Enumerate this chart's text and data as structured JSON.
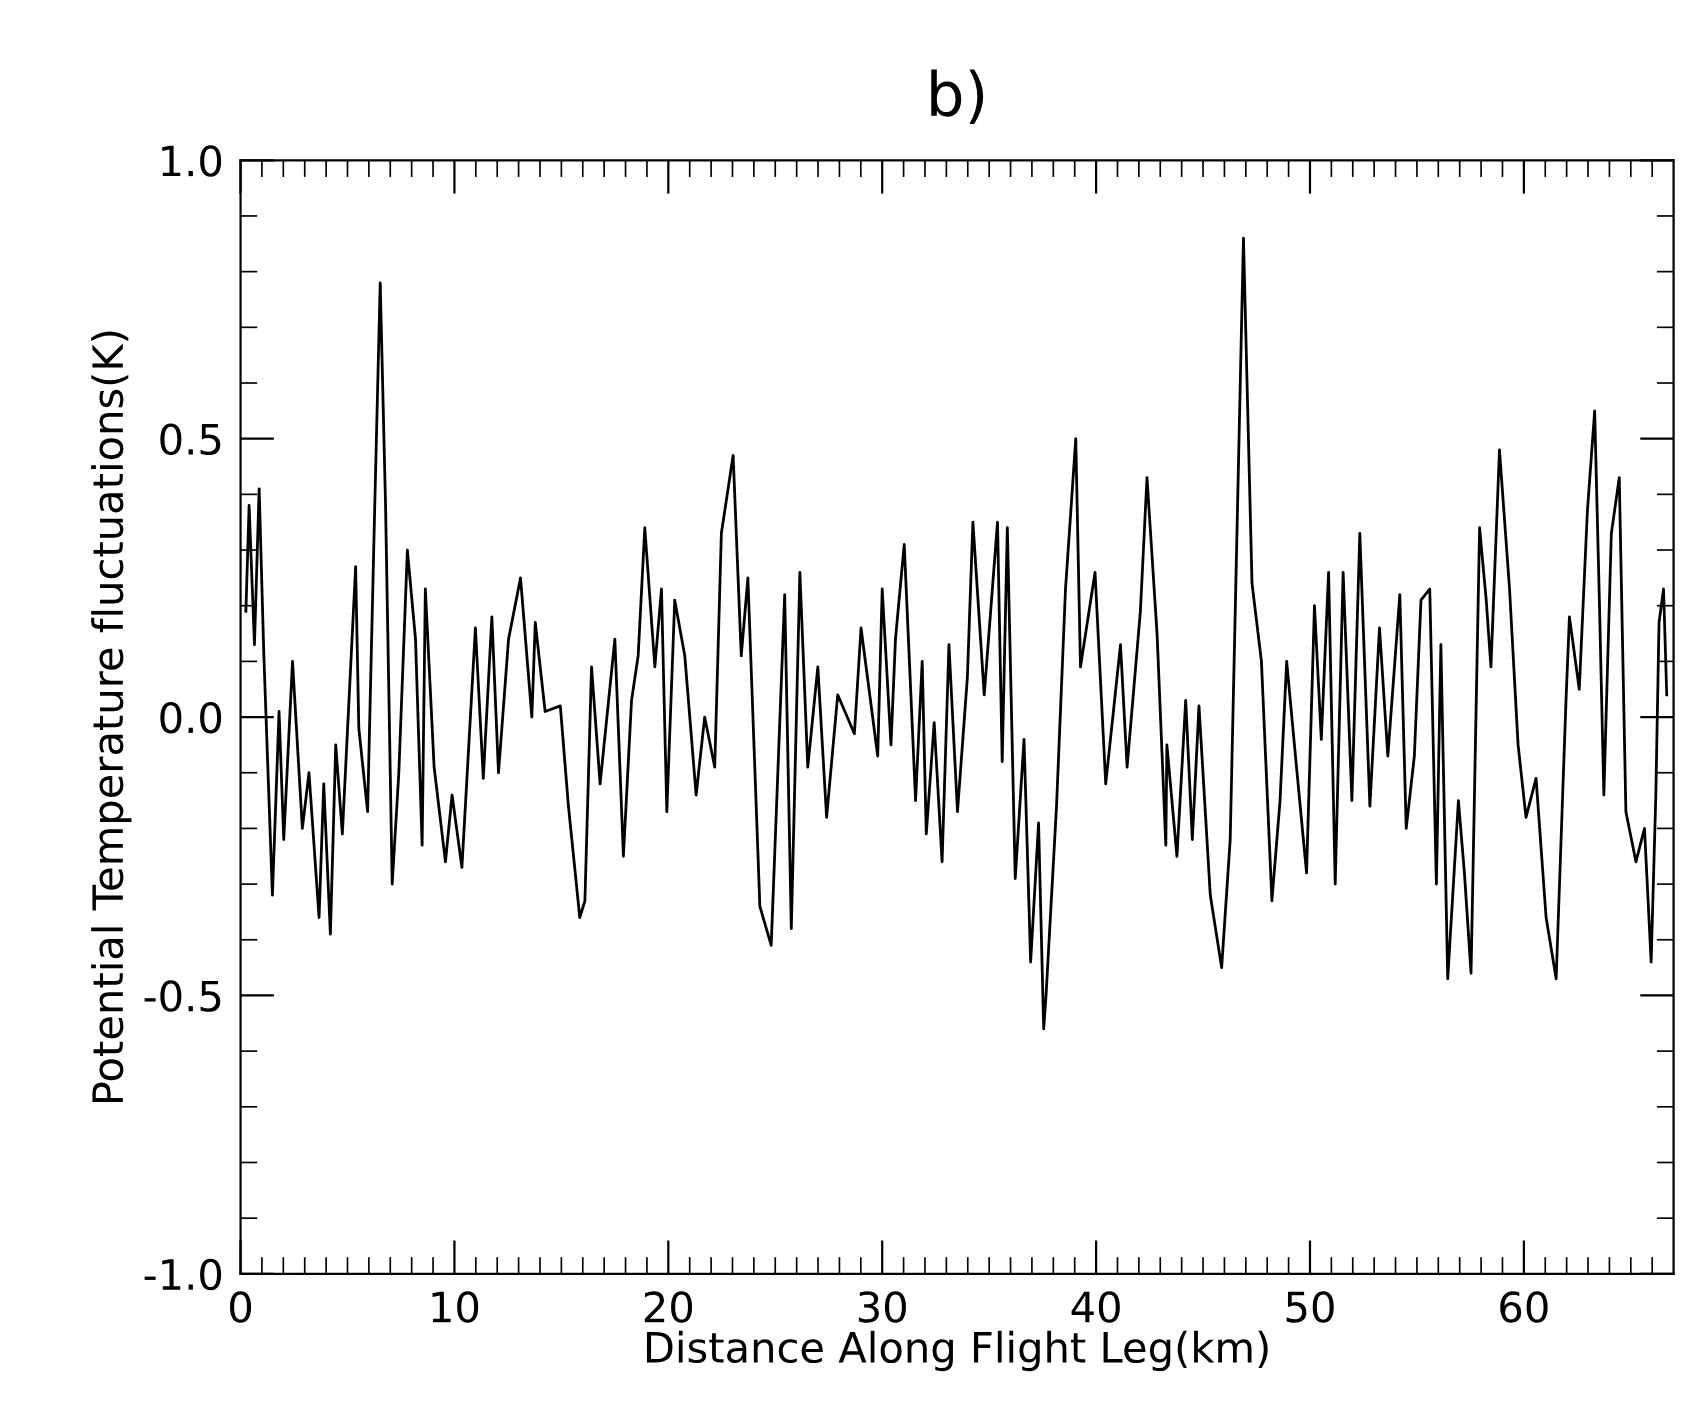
{
  "chart_data": {
    "type": "line",
    "title": "b)",
    "xlabel": "Distance Along Flight Leg(km)",
    "ylabel": "Potential Temperature fluctuations(K)",
    "xlim": [
      0,
      67
    ],
    "ylim": [
      -1.0,
      1.0
    ],
    "xticks": [
      0,
      {
        "value": 1,
        "label": null
      },
      {
        "value": 2,
        "label": null
      },
      {
        "value": 3,
        "label": null
      },
      {
        "value": 4,
        "label": null
      },
      {
        "value": 5,
        "label": null
      },
      {
        "value": 6,
        "label": null
      },
      {
        "value": 7,
        "label": null
      },
      {
        "value": 8,
        "label": null
      },
      {
        "value": 9,
        "label": null
      },
      10,
      {
        "value": 11,
        "label": null
      },
      {
        "value": 12,
        "label": null
      },
      {
        "value": 13,
        "label": null
      },
      {
        "value": 14,
        "label": null
      },
      {
        "value": 15,
        "label": null
      },
      {
        "value": 16,
        "label": null
      },
      {
        "value": 17,
        "label": null
      },
      {
        "value": 18,
        "label": null
      },
      {
        "value": 19,
        "label": null
      },
      20,
      {
        "value": 21,
        "label": null
      },
      {
        "value": 22,
        "label": null
      },
      {
        "value": 23,
        "label": null
      },
      {
        "value": 24,
        "label": null
      },
      {
        "value": 25,
        "label": null
      },
      {
        "value": 26,
        "label": null
      },
      {
        "value": 27,
        "label": null
      },
      {
        "value": 28,
        "label": null
      },
      {
        "value": 29,
        "label": null
      },
      30,
      {
        "value": 31,
        "label": null
      },
      {
        "value": 32,
        "label": null
      },
      {
        "value": 33,
        "label": null
      },
      {
        "value": 34,
        "label": null
      },
      {
        "value": 35,
        "label": null
      },
      {
        "value": 36,
        "label": null
      },
      {
        "value": 37,
        "label": null
      },
      {
        "value": 38,
        "label": null
      },
      {
        "value": 39,
        "label": null
      },
      40,
      {
        "value": 41,
        "label": null
      },
      {
        "value": 42,
        "label": null
      },
      {
        "value": 43,
        "label": null
      },
      {
        "value": 44,
        "label": null
      },
      {
        "value": 45,
        "label": null
      },
      {
        "value": 46,
        "label": null
      },
      {
        "value": 47,
        "label": null
      },
      {
        "value": 48,
        "label": null
      },
      {
        "value": 49,
        "label": null
      },
      50,
      {
        "value": 51,
        "label": null
      },
      {
        "value": 52,
        "label": null
      },
      {
        "value": 53,
        "label": null
      },
      {
        "value": 54,
        "label": null
      },
      {
        "value": 55,
        "label": null
      },
      {
        "value": 56,
        "label": null
      },
      {
        "value": 57,
        "label": null
      },
      {
        "value": 58,
        "label": null
      },
      {
        "value": 59,
        "label": null
      },
      60,
      {
        "value": 61,
        "label": null
      },
      {
        "value": 62,
        "label": null
      },
      {
        "value": 63,
        "label": null
      },
      {
        "value": 64,
        "label": null
      },
      {
        "value": 65,
        "label": null
      },
      {
        "value": 66,
        "label": null
      }
    ],
    "yticks": [
      {
        "value": -1.0,
        "label": "-1.0"
      },
      {
        "value": -0.9,
        "label": null
      },
      {
        "value": -0.8,
        "label": null
      },
      {
        "value": -0.7,
        "label": null
      },
      {
        "value": -0.6,
        "label": null
      },
      {
        "value": -0.5,
        "label": "-0.5"
      },
      {
        "value": -0.4,
        "label": null
      },
      {
        "value": -0.3,
        "label": null
      },
      {
        "value": -0.2,
        "label": null
      },
      {
        "value": -0.1,
        "label": null
      },
      {
        "value": 0.0,
        "label": "0.0"
      },
      {
        "value": 0.1,
        "label": null
      },
      {
        "value": 0.2,
        "label": null
      },
      {
        "value": 0.3,
        "label": null
      },
      {
        "value": 0.4,
        "label": null
      },
      {
        "value": 0.5,
        "label": "0.5"
      },
      {
        "value": 0.6,
        "label": null
      },
      {
        "value": 0.7,
        "label": null
      },
      {
        "value": 0.8,
        "label": null
      },
      {
        "value": 0.9,
        "label": null
      },
      {
        "value": 1.0,
        "label": "1.0"
      }
    ],
    "grid": false,
    "legend": false,
    "marker": "none",
    "line_style": "solid",
    "series": [
      {
        "color": "#000000",
        "x": [
          0.25,
          0.4,
          0.65,
          0.87,
          1.09,
          1.49,
          1.8,
          2.02,
          2.43,
          2.89,
          3.2,
          3.67,
          3.89,
          4.2,
          4.45,
          4.76,
          5.38,
          5.53,
          5.94,
          6.25,
          6.53,
          6.78,
          7.09,
          7.4,
          7.8,
          8.18,
          8.49,
          8.64,
          9.05,
          9.58,
          9.89,
          10.35,
          10.98,
          11.35,
          11.75,
          12.06,
          12.53,
          13.09,
          13.62,
          13.78,
          14.24,
          14.95,
          15.33,
          15.86,
          16.1,
          16.41,
          16.81,
          17.5,
          17.9,
          18.28,
          18.59,
          18.9,
          19.37,
          19.68,
          19.93,
          20.3,
          20.77,
          21.3,
          21.7,
          22.17,
          22.48,
          23.03,
          23.41,
          23.72,
          24.28,
          24.81,
          25.44,
          25.75,
          26.15,
          26.52,
          26.99,
          27.4,
          27.92,
          28.7,
          29.01,
          29.79,
          30.0,
          30.41,
          30.62,
          31.03,
          31.56,
          31.87,
          32.06,
          32.43,
          32.8,
          33.12,
          33.52,
          33.98,
          34.24,
          34.77,
          35.39,
          35.61,
          35.85,
          36.22,
          36.63,
          36.94,
          37.31,
          37.55,
          37.66,
          38.15,
          38.57,
          39.05,
          39.27,
          39.95,
          40.45,
          41.14,
          41.45,
          42.07,
          42.38,
          42.85,
          43.26,
          43.31,
          43.78,
          44.19,
          44.5,
          44.81,
          45.34,
          45.87,
          46.27,
          46.89,
          47.29,
          47.73,
          48.22,
          48.6,
          48.91,
          49.37,
          49.84,
          50.21,
          50.53,
          50.87,
          51.18,
          51.55,
          51.96,
          52.33,
          52.8,
          53.25,
          53.64,
          54.2,
          54.5,
          54.88,
          55.19,
          55.6,
          55.91,
          56.12,
          56.44,
          56.94,
          57.22,
          57.53,
          57.93,
          58.24,
          58.46,
          58.86,
          59.33,
          59.73,
          60.1,
          60.57,
          61.04,
          61.51,
          61.97,
          62.13,
          62.59,
          62.97,
          63.31,
          63.53,
          63.74,
          64.09,
          64.46,
          64.77,
          65.24,
          65.64,
          65.95,
          66.17,
          66.32,
          66.53,
          66.68
        ],
        "values": [
          0.19,
          0.38,
          0.13,
          0.41,
          0.11,
          -0.32,
          0.01,
          -0.22,
          0.1,
          -0.2,
          -0.1,
          -0.36,
          -0.12,
          -0.39,
          -0.05,
          -0.21,
          0.27,
          -0.02,
          -0.17,
          0.34,
          0.78,
          0.38,
          -0.3,
          -0.1,
          0.3,
          0.14,
          -0.23,
          0.23,
          -0.09,
          -0.26,
          -0.14,
          -0.27,
          0.16,
          -0.11,
          0.18,
          -0.1,
          0.14,
          0.25,
          0.0,
          0.17,
          0.01,
          0.02,
          -0.16,
          -0.36,
          -0.33,
          0.09,
          -0.12,
          0.14,
          -0.25,
          0.03,
          0.11,
          0.34,
          0.09,
          0.23,
          -0.17,
          0.21,
          0.11,
          -0.14,
          0.0,
          -0.09,
          0.33,
          0.47,
          0.11,
          0.25,
          -0.34,
          -0.41,
          0.22,
          -0.38,
          0.26,
          -0.09,
          0.09,
          -0.18,
          0.04,
          -0.03,
          0.16,
          -0.07,
          0.23,
          -0.05,
          0.14,
          0.31,
          -0.15,
          0.1,
          -0.21,
          -0.01,
          -0.26,
          0.13,
          -0.17,
          0.07,
          0.35,
          0.04,
          0.35,
          -0.08,
          0.34,
          -0.29,
          -0.04,
          -0.44,
          -0.19,
          -0.56,
          -0.5,
          -0.16,
          0.23,
          0.5,
          0.09,
          0.26,
          -0.12,
          0.13,
          -0.09,
          0.19,
          0.43,
          0.15,
          -0.23,
          -0.05,
          -0.25,
          0.03,
          -0.22,
          0.02,
          -0.32,
          -0.45,
          -0.22,
          0.86,
          0.24,
          0.1,
          -0.33,
          -0.15,
          0.1,
          -0.09,
          -0.28,
          0.2,
          -0.04,
          0.26,
          -0.3,
          0.26,
          -0.15,
          0.33,
          -0.16,
          0.16,
          -0.07,
          0.22,
          -0.2,
          -0.07,
          0.21,
          0.23,
          -0.3,
          0.13,
          -0.47,
          -0.15,
          -0.28,
          -0.46,
          0.34,
          0.21,
          0.09,
          0.48,
          0.23,
          -0.05,
          -0.18,
          -0.11,
          -0.36,
          -0.47,
          0.03,
          0.18,
          0.05,
          0.37,
          0.55,
          0.21,
          -0.14,
          0.33,
          0.43,
          -0.17,
          -0.26,
          -0.2,
          -0.44,
          -0.14,
          0.17,
          0.23,
          0.04
        ]
      }
    ]
  }
}
